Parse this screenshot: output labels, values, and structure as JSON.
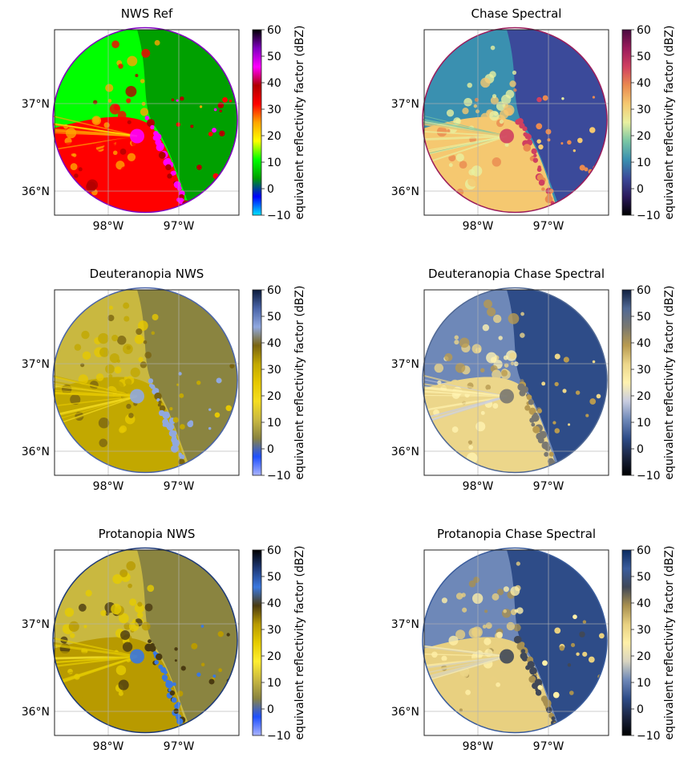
{
  "chart_data": [
    {
      "type": "heatmap",
      "title": "NWS Ref",
      "colormap": [
        "#00e5ff",
        "#0000ff",
        "#00a000",
        "#00ff00",
        "#ffff00",
        "#ffa500",
        "#ff0000",
        "#b00000",
        "#ff00ff",
        "#8000c0",
        "#000000"
      ],
      "lat_ticks": [
        "36°N",
        "37°N"
      ],
      "lon_ticks": [
        "98°W",
        "97°W"
      ],
      "colorbar": {
        "label": "equivalent reflectivity factor (dBZ)",
        "ticks": [
          "−10",
          "0",
          "10",
          "20",
          "30",
          "40",
          "50",
          "60"
        ],
        "range": [
          -10,
          60
        ]
      }
    },
    {
      "type": "heatmap",
      "title": "Chase Spectral",
      "colormap": [
        "#000000",
        "#2b1a5c",
        "#3b4a9a",
        "#3a90b0",
        "#7ac6a4",
        "#e9f0a0",
        "#f5c870",
        "#ea8a50",
        "#d04060",
        "#9b1c5c",
        "#4a0a40"
      ],
      "lat_ticks": [
        "36°N",
        "37°N"
      ],
      "lon_ticks": [
        "98°W",
        "97°W"
      ],
      "colorbar": {
        "label": "equivalent reflectivity factor (dBZ)",
        "ticks": [
          "−10",
          "0",
          "10",
          "20",
          "30",
          "40",
          "50",
          "60"
        ],
        "range": [
          -10,
          60
        ]
      }
    },
    {
      "type": "heatmap",
      "title": "Deuteranopia NWS",
      "colormap": [
        "#aab4ff",
        "#1e50ff",
        "#8a8440",
        "#c9b840",
        "#f5dd20",
        "#e6c800",
        "#c2a800",
        "#7a6410",
        "#90a8e0",
        "#4a64a8",
        "#0a1a3a"
      ],
      "lat_ticks": [
        "36°N",
        "37°N"
      ],
      "lon_ticks": [
        "98°W",
        "97°W"
      ],
      "colorbar": {
        "label": "equivalent reflectivity factor (dBZ)",
        "ticks": [
          "−10",
          "0",
          "10",
          "20",
          "30",
          "40",
          "50",
          "60"
        ],
        "range": [
          -10,
          60
        ]
      }
    },
    {
      "type": "heatmap",
      "title": "Deuteranopia Chase Spectral",
      "colormap": [
        "#000000",
        "#1a2440",
        "#2e4c88",
        "#6e88b8",
        "#c8cce0",
        "#fff2b0",
        "#ecd68a",
        "#b89a50",
        "#7a7870",
        "#506894",
        "#102040"
      ],
      "lat_ticks": [
        "36°N",
        "37°N"
      ],
      "lon_ticks": [
        "98°W",
        "97°W"
      ],
      "colorbar": {
        "label": "equivalent reflectivity factor (dBZ)",
        "ticks": [
          "−10",
          "0",
          "10",
          "20",
          "30",
          "40",
          "50",
          "60"
        ],
        "range": [
          -10,
          60
        ]
      }
    },
    {
      "type": "heatmap",
      "title": "Protanopia NWS",
      "colormap": [
        "#aab4ff",
        "#1e50ff",
        "#8a8440",
        "#c9b840",
        "#ffee30",
        "#e6cc00",
        "#b89a00",
        "#4a3a10",
        "#3a78e0",
        "#1e3a78",
        "#000000"
      ],
      "lat_ticks": [
        "36°N",
        "37°N"
      ],
      "lon_ticks": [
        "98°W",
        "97°W"
      ],
      "colorbar": {
        "label": "equivalent reflectivity factor (dBZ)",
        "ticks": [
          "−10",
          "0",
          "10",
          "20",
          "30",
          "40",
          "50",
          "60"
        ],
        "range": [
          -10,
          60
        ]
      }
    },
    {
      "type": "heatmap",
      "title": "Protanopia Chase Spectral",
      "colormap": [
        "#000000",
        "#1a2440",
        "#2e4c88",
        "#6e88b8",
        "#d8d4c0",
        "#fff0a8",
        "#e8d080",
        "#a89050",
        "#404858",
        "#3a5c9c",
        "#0a2a60"
      ],
      "lat_ticks": [
        "36°N",
        "37°N"
      ],
      "lon_ticks": [
        "98°W",
        "97°W"
      ],
      "colorbar": {
        "label": "equivalent reflectivity factor (dBZ)",
        "ticks": [
          "−10",
          "0",
          "10",
          "20",
          "30",
          "40",
          "50",
          "60"
        ],
        "range": [
          -10,
          60
        ]
      }
    }
  ]
}
